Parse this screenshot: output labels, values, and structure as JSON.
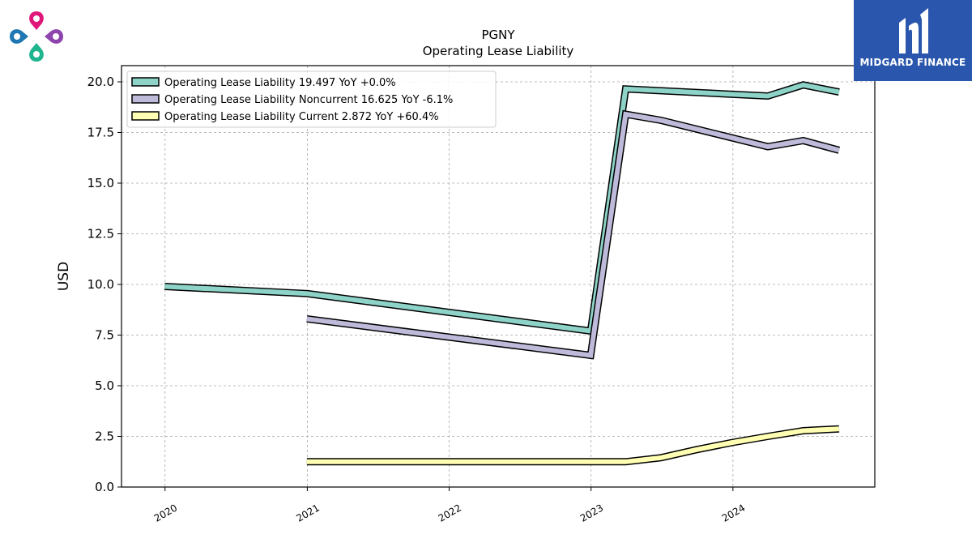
{
  "brand": {
    "name": "MIDGARD FINANCE"
  },
  "chart_data": {
    "type": "line",
    "title": "PGNY",
    "subtitle": "Operating Lease Liability",
    "ylabel": "USD",
    "xlabel": "",
    "ylim": [
      0,
      20.8
    ],
    "xlim": [
      "2019-09-11",
      "2024-12-31"
    ],
    "yticks": [
      0.0,
      2.5,
      5.0,
      7.5,
      10.0,
      12.5,
      15.0,
      17.5,
      20.0
    ],
    "ytick_labels": [
      "0.0",
      "2.5",
      "5.0",
      "7.5",
      "10.0",
      "12.5",
      "15.0",
      "17.5",
      "20.0"
    ],
    "xticks": [
      "2020-01-01",
      "2021-01-01",
      "2022-01-01",
      "2023-01-01",
      "2024-01-01"
    ],
    "xtick_labels": [
      "2020",
      "2021",
      "2022",
      "2023",
      "2024"
    ],
    "grid": true,
    "legend_position": "top-left",
    "series": [
      {
        "name": "Operating Lease Liability  19.497 YoY +0.0%",
        "color": "#8dd3c7",
        "points": [
          [
            "2019-12-31",
            9.9
          ],
          [
            "2020-12-31",
            9.55
          ],
          [
            "2022-12-31",
            7.7
          ],
          [
            "2023-03-31",
            19.65
          ],
          [
            "2024-03-31",
            19.3
          ],
          [
            "2024-06-30",
            19.85
          ],
          [
            "2024-09-30",
            19.497
          ]
        ]
      },
      {
        "name": "Operating Lease Liability Noncurrent  16.625 YoY -6.1%",
        "color": "#bebada",
        "points": [
          [
            "2020-12-31",
            8.3
          ],
          [
            "2022-12-31",
            6.5
          ],
          [
            "2023-03-31",
            18.4
          ],
          [
            "2023-06-30",
            18.1
          ],
          [
            "2024-03-31",
            16.8
          ],
          [
            "2024-06-30",
            17.1
          ],
          [
            "2024-09-30",
            16.625
          ]
        ]
      },
      {
        "name": "Operating Lease Liability Current  2.872 YoY +60.4%",
        "color": "#ffffb3",
        "points": [
          [
            "2020-12-31",
            1.25
          ],
          [
            "2022-12-31",
            1.25
          ],
          [
            "2023-03-31",
            1.25
          ],
          [
            "2023-06-30",
            1.45
          ],
          [
            "2023-09-30",
            1.85
          ],
          [
            "2023-12-31",
            2.2
          ],
          [
            "2024-03-31",
            2.5
          ],
          [
            "2024-06-30",
            2.78
          ],
          [
            "2024-09-30",
            2.872
          ]
        ]
      }
    ]
  }
}
